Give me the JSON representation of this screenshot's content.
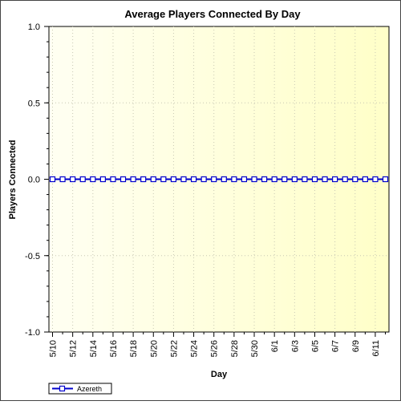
{
  "chart_data": {
    "type": "line",
    "title": "Average Players Connected By Day",
    "xlabel": "Day",
    "ylabel": "Players Connected",
    "ylim": [
      -1.0,
      1.0
    ],
    "y_ticks": [
      "1.0",
      "0.5",
      "0.0",
      "-0.5",
      "-1.0"
    ],
    "y_tick_values": [
      1.0,
      0.5,
      0.0,
      -0.5,
      -1.0
    ],
    "x_tick_labels": [
      "5/10",
      "5/12",
      "5/14",
      "5/16",
      "5/18",
      "5/20",
      "5/22",
      "5/24",
      "5/26",
      "5/28",
      "5/30",
      "6/1",
      "6/3",
      "6/5",
      "6/7",
      "6/9",
      "6/11"
    ],
    "x": [
      "5/10",
      "5/11",
      "5/12",
      "5/13",
      "5/14",
      "5/15",
      "5/16",
      "5/17",
      "5/18",
      "5/19",
      "5/20",
      "5/21",
      "5/22",
      "5/23",
      "5/24",
      "5/25",
      "5/26",
      "5/27",
      "5/28",
      "5/29",
      "5/30",
      "5/31",
      "6/1",
      "6/2",
      "6/3",
      "6/4",
      "6/5",
      "6/6",
      "6/7",
      "6/8",
      "6/9",
      "6/10",
      "6/11",
      "6/12"
    ],
    "series": [
      {
        "name": "Azereth",
        "color": "#0000cc",
        "marker": "square",
        "values": [
          0,
          0,
          0,
          0,
          0,
          0,
          0,
          0,
          0,
          0,
          0,
          0,
          0,
          0,
          0,
          0,
          0,
          0,
          0,
          0,
          0,
          0,
          0,
          0,
          0,
          0,
          0,
          0,
          0,
          0,
          0,
          0,
          0,
          0
        ]
      }
    ],
    "grid": true,
    "legend_position": "bottom-left",
    "background_gradient": [
      "#fffff0",
      "#ffffcc"
    ]
  }
}
